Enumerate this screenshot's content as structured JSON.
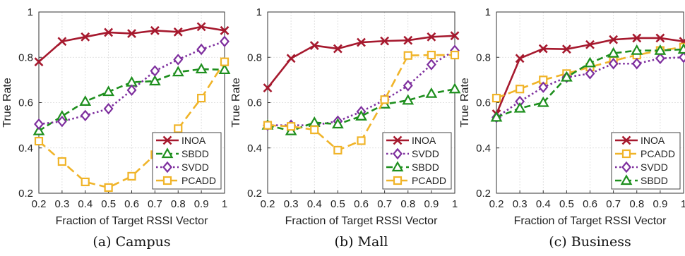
{
  "chart_data": [
    {
      "type": "line",
      "caption": "(a) Campus",
      "xlabel": "Fraction of Target RSSI Vector",
      "ylabel": "True Rate",
      "x": [
        0.2,
        0.3,
        0.4,
        0.5,
        0.6,
        0.7,
        0.8,
        0.9,
        1
      ],
      "xticks": [
        "0.2",
        "0.3",
        "0.4",
        "0.5",
        "0.6",
        "0.7",
        "0.8",
        "0.9",
        "1"
      ],
      "yticks": [
        "0.2",
        "0.4",
        "0.6",
        "0.8",
        "1"
      ],
      "xlim": [
        0.2,
        1
      ],
      "ylim": [
        0.2,
        1
      ],
      "grid": true,
      "legend_position": "bottom-right",
      "series": [
        {
          "name": "INOA",
          "color": "#A6192E",
          "dash": "solid",
          "marker": "x",
          "values": [
            0.78,
            0.87,
            0.89,
            0.91,
            0.905,
            0.918,
            0.912,
            0.935,
            0.918
          ]
        },
        {
          "name": "SBDD",
          "color": "#1E8F1E",
          "dash": "dashed",
          "marker": "triangle",
          "values": [
            0.475,
            0.54,
            0.605,
            0.648,
            0.69,
            0.695,
            0.735,
            0.748,
            0.745
          ]
        },
        {
          "name": "SVDD",
          "color": "#7E2F9E",
          "dash": "dotted",
          "marker": "diamond",
          "values": [
            0.505,
            0.517,
            0.543,
            0.573,
            0.655,
            0.74,
            0.79,
            0.835,
            0.87
          ]
        },
        {
          "name": "PCADD",
          "color": "#F0B429",
          "dash": "longdash",
          "marker": "square",
          "values": [
            0.43,
            0.34,
            0.25,
            0.225,
            0.275,
            0.37,
            0.485,
            0.62,
            0.78
          ]
        }
      ]
    },
    {
      "type": "line",
      "caption": "(b) Mall",
      "xlabel": "Fraction of Target RSSI Vector",
      "ylabel": "True Rate",
      "x": [
        0.2,
        0.3,
        0.4,
        0.5,
        0.6,
        0.7,
        0.8,
        0.9,
        1
      ],
      "xticks": [
        "0.2",
        "0.3",
        "0.4",
        "0.5",
        "0.6",
        "0.7",
        "0.8",
        "0.9",
        "1"
      ],
      "yticks": [
        "0.2",
        "0.4",
        "0.6",
        "0.8",
        "1"
      ],
      "xlim": [
        0.2,
        1
      ],
      "ylim": [
        0.2,
        1
      ],
      "grid": true,
      "legend_position": "bottom-right",
      "series": [
        {
          "name": "INOA",
          "color": "#A6192E",
          "dash": "solid",
          "marker": "x",
          "values": [
            0.665,
            0.795,
            0.852,
            0.838,
            0.866,
            0.872,
            0.875,
            0.89,
            0.895
          ]
        },
        {
          "name": "SVDD",
          "color": "#7E2F9E",
          "dash": "dotted",
          "marker": "diamond",
          "values": [
            0.5,
            0.5,
            0.5,
            0.518,
            0.56,
            0.612,
            0.675,
            0.768,
            0.83
          ]
        },
        {
          "name": "SBDD",
          "color": "#1E8F1E",
          "dash": "dashed",
          "marker": "triangle",
          "values": [
            0.5,
            0.475,
            0.512,
            0.505,
            0.54,
            0.593,
            0.61,
            0.64,
            0.66
          ]
        },
        {
          "name": "PCADD",
          "color": "#F0B429",
          "dash": "longdash",
          "marker": "square",
          "values": [
            0.5,
            0.495,
            0.48,
            0.39,
            0.432,
            0.613,
            0.808,
            0.81,
            0.81
          ]
        }
      ]
    },
    {
      "type": "line",
      "caption": "(c) Business",
      "xlabel": "Fraction of Target RSSI Vector",
      "ylabel": "True Rate",
      "x": [
        0.2,
        0.3,
        0.4,
        0.5,
        0.6,
        0.7,
        0.8,
        0.9,
        1
      ],
      "xticks": [
        "0.2",
        "0.3",
        "0.4",
        "0.5",
        "0.6",
        "0.7",
        "0.8",
        "0.9",
        "1"
      ],
      "yticks": [
        "0.2",
        "0.4",
        "0.6",
        "0.8",
        "1"
      ],
      "xlim": [
        0.2,
        1
      ],
      "ylim": [
        0.2,
        1
      ],
      "grid": true,
      "legend_position": "bottom-right",
      "series": [
        {
          "name": "INOA",
          "color": "#A6192E",
          "dash": "solid",
          "marker": "x",
          "values": [
            0.55,
            0.795,
            0.838,
            0.836,
            0.856,
            0.878,
            0.885,
            0.885,
            0.87
          ]
        },
        {
          "name": "PCADD",
          "color": "#F0B429",
          "dash": "longdash",
          "marker": "square",
          "values": [
            0.62,
            0.66,
            0.7,
            0.728,
            0.757,
            0.785,
            0.81,
            0.83,
            0.845
          ]
        },
        {
          "name": "SVDD",
          "color": "#7E2F9E",
          "dash": "dotted",
          "marker": "diamond",
          "values": [
            0.535,
            0.605,
            0.668,
            0.712,
            0.728,
            0.772,
            0.772,
            0.795,
            0.8
          ]
        },
        {
          "name": "SBDD",
          "color": "#1E8F1E",
          "dash": "dashed",
          "marker": "triangle",
          "values": [
            0.535,
            0.575,
            0.6,
            0.712,
            0.775,
            0.818,
            0.83,
            0.83,
            0.835
          ]
        }
      ]
    }
  ]
}
